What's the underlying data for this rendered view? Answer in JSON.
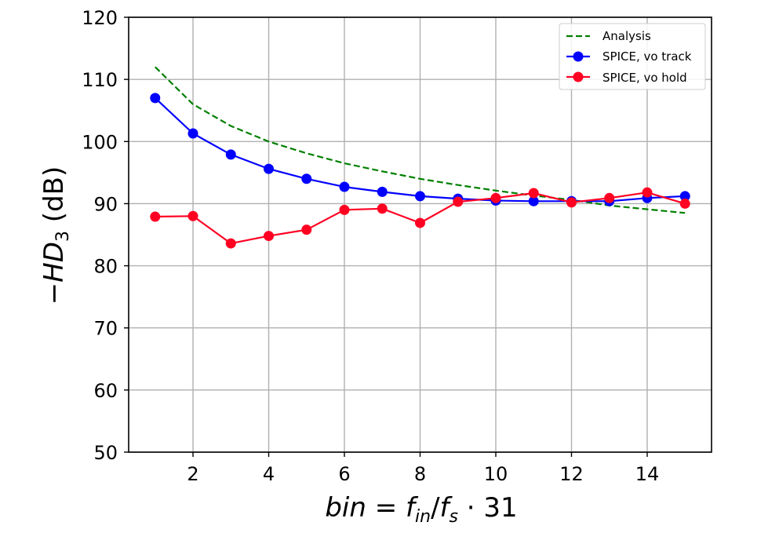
{
  "chart_data": {
    "type": "line",
    "xlabel": {
      "var": "bin",
      "eq": " = ",
      "f1": "f",
      "sub1": "in",
      "slash": "/",
      "f2": "f",
      "sub2": "s",
      "tail": " · 31"
    },
    "ylabel": {
      "minus": "−",
      "var": "HD",
      "sub": "3",
      "unit": " (dB)"
    },
    "xlim": [
      0.3,
      15.7
    ],
    "ylim": [
      50,
      120
    ],
    "xticks": [
      2,
      4,
      6,
      8,
      10,
      12,
      14
    ],
    "yticks": [
      50,
      60,
      70,
      80,
      90,
      100,
      110,
      120
    ],
    "grid": true,
    "legend_position": "top-right",
    "x": [
      1,
      2,
      3,
      4,
      5,
      6,
      7,
      8,
      9,
      10,
      11,
      12,
      13,
      14,
      15
    ],
    "series": [
      {
        "name": "Analysis",
        "color": "#008000",
        "style": "dashed",
        "marker": "none",
        "values": [
          112.0,
          106.0,
          102.5,
          100.0,
          98.1,
          96.5,
          95.2,
          94.0,
          93.0,
          92.1,
          91.3,
          90.6,
          89.7,
          89.1,
          88.5
        ]
      },
      {
        "name": "SPICE, vo track",
        "color": "#0000ff",
        "style": "solid",
        "marker": "circle",
        "values": [
          107.0,
          101.3,
          97.9,
          95.6,
          94.0,
          92.7,
          91.9,
          91.2,
          90.8,
          90.5,
          90.4,
          90.4,
          90.4,
          90.9,
          91.2
        ]
      },
      {
        "name": "SPICE, vo hold",
        "color": "#ff0022",
        "style": "solid",
        "marker": "circle",
        "values": [
          87.9,
          88.0,
          83.6,
          84.8,
          85.8,
          89.0,
          89.2,
          86.9,
          90.3,
          90.9,
          91.7,
          90.2,
          90.9,
          91.8,
          90.0
        ]
      }
    ]
  }
}
